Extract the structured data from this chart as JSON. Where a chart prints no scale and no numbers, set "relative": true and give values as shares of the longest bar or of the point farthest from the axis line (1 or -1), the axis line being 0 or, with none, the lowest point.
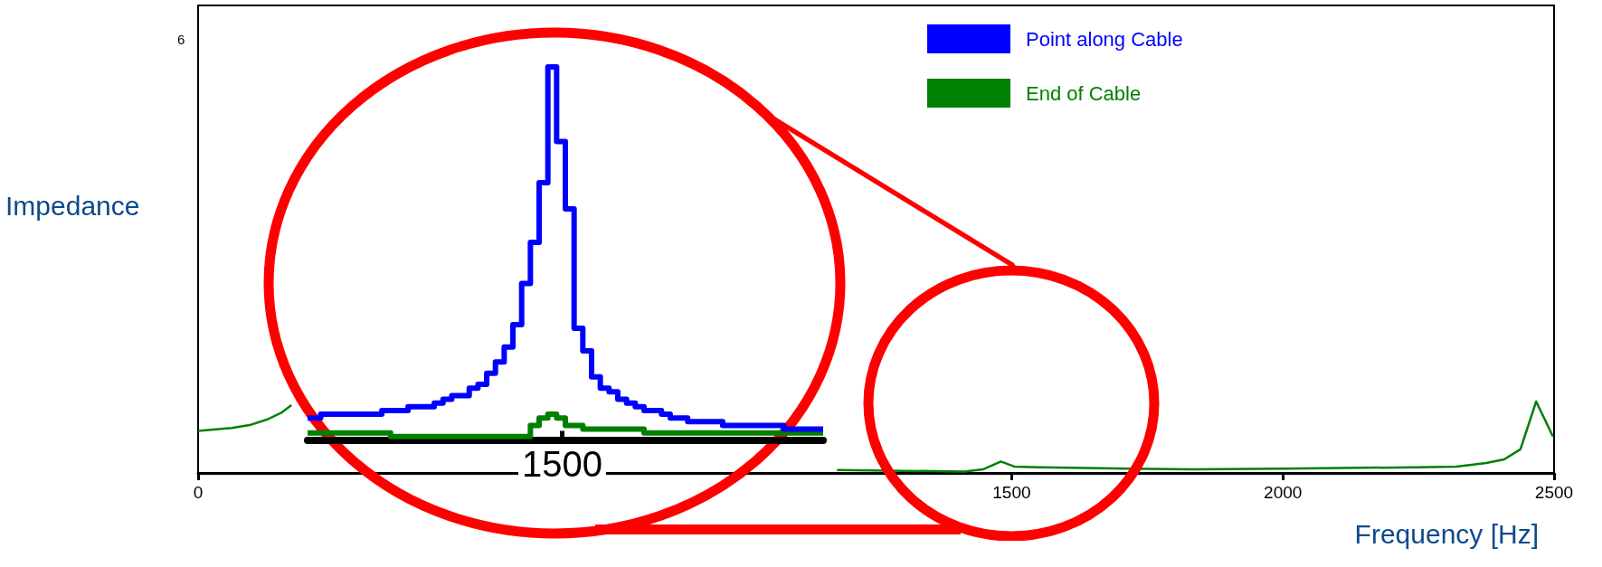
{
  "chart_data": [
    {
      "type": "line",
      "xlabel": "Frequency [Hz]",
      "ylabel": "Impedance",
      "annotations": [
        "6"
      ],
      "relative": true,
      "xlim": [
        0,
        2500
      ],
      "xticks": [
        0,
        1500,
        2000,
        2500
      ],
      "legend": "top right",
      "grid": false,
      "marker": "none",
      "x": [
        0,
        62,
        95,
        128,
        155,
        172,
        700,
        1178,
        1413,
        1447,
        1480,
        1505,
        1552,
        1718,
        1835,
        2000,
        2247,
        2320,
        2375,
        2408,
        2438,
        2467,
        2498
      ],
      "series": [
        {
          "name": "Point along Cable",
          "color": "#0000ff",
          "values": [
            null,
            null,
            null,
            null,
            null,
            null,
            null,
            null,
            null,
            null,
            null,
            null,
            null,
            null,
            null,
            null,
            null,
            null,
            null,
            null,
            null,
            null,
            null
          ]
        },
        {
          "name": "End of Cable",
          "color": "#008000",
          "values": [
            0.59,
            0.63,
            0.67,
            0.75,
            0.85,
            0.95,
            null,
            0.04,
            0.02,
            0.05,
            0.16,
            0.09,
            0.08,
            0.06,
            0.05,
            0.06,
            0.08,
            0.09,
            0.14,
            0.19,
            0.33,
            1.0,
            0.51
          ]
        }
      ]
    },
    {
      "type": "step",
      "relative": true,
      "grid": false,
      "marker": "none",
      "annotations": [
        "1500"
      ],
      "categories": [
        null,
        null,
        null,
        null,
        null,
        null,
        null,
        null,
        null,
        null,
        null,
        null,
        null,
        null,
        null,
        null,
        null,
        null,
        null,
        null,
        null,
        null,
        null,
        null,
        null,
        null,
        null,
        null,
        null,
        null,
        null,
        null,
        null,
        null,
        null,
        null,
        null,
        null,
        null,
        null,
        null,
        null,
        null,
        null,
        null,
        null,
        null,
        null,
        null,
        null,
        null,
        null,
        null,
        null,
        null,
        null,
        null,
        null,
        null,
        null
      ],
      "series": [
        {
          "color": "#0000ff",
          "values": [
            0.06,
            0.06,
            0.07,
            0.07,
            0.07,
            0.07,
            0.07,
            0.07,
            0.07,
            0.08,
            0.08,
            0.08,
            0.09,
            0.09,
            0.09,
            0.1,
            0.11,
            0.12,
            0.12,
            0.14,
            0.15,
            0.18,
            0.21,
            0.25,
            0.31,
            0.42,
            0.53,
            0.69,
            1.0,
            0.8,
            0.62,
            0.3,
            0.24,
            0.17,
            0.14,
            0.13,
            0.11,
            0.1,
            0.09,
            0.08,
            0.08,
            0.07,
            0.06,
            0.06,
            0.05,
            0.05,
            0.05,
            0.05,
            0.04,
            0.04,
            0.04,
            0.04,
            0.04,
            0.04,
            0.04,
            0.03,
            0.03,
            0.03,
            0.03,
            0.03
          ]
        },
        {
          "color": "#008000",
          "values": [
            0.02,
            0.02,
            0.02,
            0.02,
            0.02,
            0.02,
            0.02,
            0.02,
            0.02,
            0.02,
            0.01,
            0.01,
            0.01,
            0.01,
            0.01,
            0.01,
            0.01,
            0.01,
            0.01,
            0.01,
            0.01,
            0.01,
            0.01,
            0.01,
            0.01,
            0.01,
            0.04,
            0.06,
            0.07,
            0.06,
            0.04,
            0.04,
            0.03,
            0.03,
            0.03,
            0.03,
            0.03,
            0.03,
            0.03,
            0.02,
            0.02,
            0.02,
            0.02,
            0.02,
            0.02,
            0.02,
            0.02,
            0.02,
            0.02,
            0.02,
            0.02,
            0.02,
            0.02,
            0.02,
            0.02,
            0.02,
            0.02,
            0.02,
            0.02,
            0.02
          ]
        }
      ]
    }
  ]
}
